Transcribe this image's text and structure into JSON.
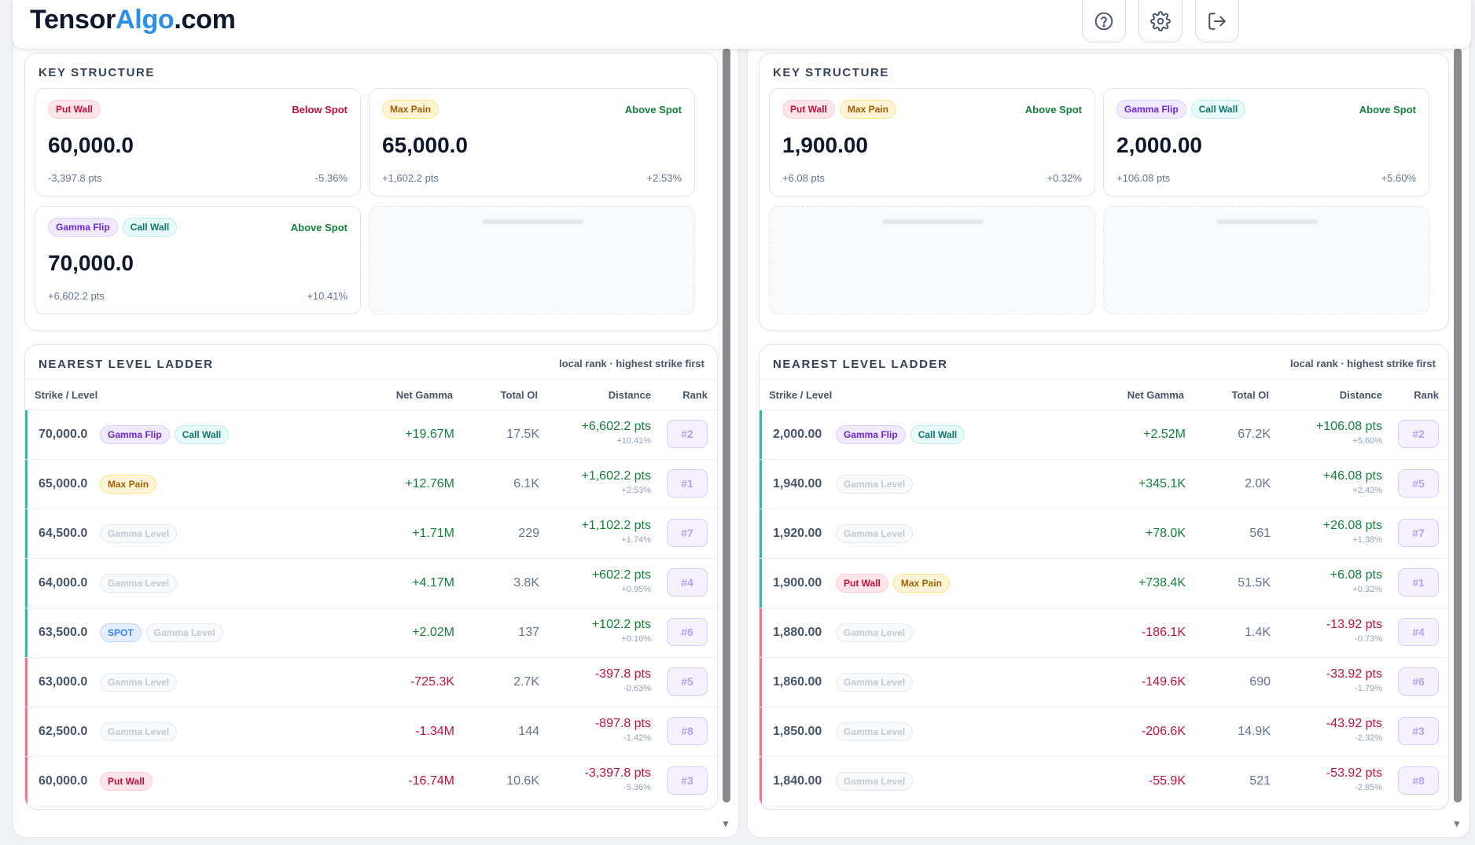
{
  "app": {
    "logo_part1": "Tensor",
    "logo_part2": "Algo",
    "logo_part3": ".com",
    "accent_color": "#2b8fe6",
    "header_icons": [
      "help-icon",
      "settings-gear-icon",
      "logout-icon"
    ]
  },
  "panels": [
    {
      "key_structure": {
        "title": "KEY STRUCTURE",
        "cards": [
          {
            "tags": [
              {
                "label": "Put Wall",
                "kind": "put_wall"
              }
            ],
            "relation": "Below Spot",
            "relation_kind": "below",
            "value": "60,000.0",
            "pts": "-3,397.8 pts",
            "pct": "-5.36%"
          },
          {
            "tags": [
              {
                "label": "Max Pain",
                "kind": "max_pain"
              }
            ],
            "relation": "Above Spot",
            "relation_kind": "above",
            "value": "65,000.0",
            "pts": "+1,602.2 pts",
            "pct": "+2.53%"
          },
          {
            "tags": [
              {
                "label": "Gamma Flip",
                "kind": "gamma_flip"
              },
              {
                "label": "Call Wall",
                "kind": "call_wall"
              }
            ],
            "relation": "Above Spot",
            "relation_kind": "above",
            "value": "70,000.0",
            "pts": "+6,602.2 pts",
            "pct": "+10.41%"
          },
          null
        ]
      },
      "ladder": {
        "title": "NEAREST LEVEL LADDER",
        "note": "local rank · highest strike first",
        "columns": [
          "Strike / Level",
          "Net Gamma",
          "Total OI",
          "Distance",
          "Rank"
        ],
        "rows": [
          {
            "strike": "70,000.0",
            "tags": [
              {
                "label": "Gamma Flip",
                "kind": "gamma_flip"
              },
              {
                "label": "Call Wall",
                "kind": "call_wall"
              }
            ],
            "net_gamma": "+19.67M",
            "total_oi": "17.5K",
            "distance": "+6,602.2 pts",
            "distance_pct": "+10.41%",
            "rank": "#2",
            "side": "pos"
          },
          {
            "strike": "65,000.0",
            "tags": [
              {
                "label": "Max Pain",
                "kind": "max_pain"
              }
            ],
            "net_gamma": "+12.76M",
            "total_oi": "6.1K",
            "distance": "+1,602.2 pts",
            "distance_pct": "+2.53%",
            "rank": "#1",
            "side": "pos"
          },
          {
            "strike": "64,500.0",
            "tags": [
              {
                "label": "Gamma Level",
                "kind": "gamma_level"
              }
            ],
            "net_gamma": "+1.71M",
            "total_oi": "229",
            "distance": "+1,102.2 pts",
            "distance_pct": "+1.74%",
            "rank": "#7",
            "side": "pos"
          },
          {
            "strike": "64,000.0",
            "tags": [
              {
                "label": "Gamma Level",
                "kind": "gamma_level"
              }
            ],
            "net_gamma": "+4.17M",
            "total_oi": "3.8K",
            "distance": "+602.2 pts",
            "distance_pct": "+0.95%",
            "rank": "#4",
            "side": "pos"
          },
          {
            "strike": "63,500.0",
            "tags": [
              {
                "label": "SPOT",
                "kind": "spot"
              },
              {
                "label": "Gamma Level",
                "kind": "gamma_level"
              }
            ],
            "net_gamma": "+2.02M",
            "total_oi": "137",
            "distance": "+102.2 pts",
            "distance_pct": "+0.16%",
            "rank": "#6",
            "side": "pos"
          },
          {
            "strike": "63,000.0",
            "tags": [
              {
                "label": "Gamma Level",
                "kind": "gamma_level"
              }
            ],
            "net_gamma": "-725.3K",
            "total_oi": "2.7K",
            "distance": "-397.8 pts",
            "distance_pct": "-0.63%",
            "rank": "#5",
            "side": "neg"
          },
          {
            "strike": "62,500.0",
            "tags": [
              {
                "label": "Gamma Level",
                "kind": "gamma_level"
              }
            ],
            "net_gamma": "-1.34M",
            "total_oi": "144",
            "distance": "-897.8 pts",
            "distance_pct": "-1.42%",
            "rank": "#8",
            "side": "neg"
          },
          {
            "strike": "60,000.0",
            "tags": [
              {
                "label": "Put Wall",
                "kind": "put_wall"
              }
            ],
            "net_gamma": "-16.74M",
            "total_oi": "10.6K",
            "distance": "-3,397.8 pts",
            "distance_pct": "-5.36%",
            "rank": "#3",
            "side": "neg"
          }
        ]
      }
    },
    {
      "key_structure": {
        "title": "KEY STRUCTURE",
        "cards": [
          {
            "tags": [
              {
                "label": "Put Wall",
                "kind": "put_wall"
              },
              {
                "label": "Max Pain",
                "kind": "max_pain"
              }
            ],
            "relation": "Above Spot",
            "relation_kind": "above",
            "value": "1,900.00",
            "pts": "+6.08 pts",
            "pct": "+0.32%"
          },
          {
            "tags": [
              {
                "label": "Gamma Flip",
                "kind": "gamma_flip"
              },
              {
                "label": "Call Wall",
                "kind": "call_wall"
              }
            ],
            "relation": "Above Spot",
            "relation_kind": "above",
            "value": "2,000.00",
            "pts": "+106.08 pts",
            "pct": "+5.60%"
          },
          null,
          null
        ]
      },
      "ladder": {
        "title": "NEAREST LEVEL LADDER",
        "note": "local rank · highest strike first",
        "columns": [
          "Strike / Level",
          "Net Gamma",
          "Total OI",
          "Distance",
          "Rank"
        ],
        "rows": [
          {
            "strike": "2,000.00",
            "tags": [
              {
                "label": "Gamma Flip",
                "kind": "gamma_flip"
              },
              {
                "label": "Call Wall",
                "kind": "call_wall"
              }
            ],
            "net_gamma": "+2.52M",
            "total_oi": "67.2K",
            "distance": "+106.08 pts",
            "distance_pct": "+5.60%",
            "rank": "#2",
            "side": "pos"
          },
          {
            "strike": "1,940.00",
            "tags": [
              {
                "label": "Gamma Level",
                "kind": "gamma_level"
              }
            ],
            "net_gamma": "+345.1K",
            "total_oi": "2.0K",
            "distance": "+46.08 pts",
            "distance_pct": "+2.43%",
            "rank": "#5",
            "side": "pos"
          },
          {
            "strike": "1,920.00",
            "tags": [
              {
                "label": "Gamma Level",
                "kind": "gamma_level"
              }
            ],
            "net_gamma": "+78.0K",
            "total_oi": "561",
            "distance": "+26.08 pts",
            "distance_pct": "+1.38%",
            "rank": "#7",
            "side": "pos"
          },
          {
            "strike": "1,900.00",
            "tags": [
              {
                "label": "Put Wall",
                "kind": "put_wall"
              },
              {
                "label": "Max Pain",
                "kind": "max_pain"
              }
            ],
            "net_gamma": "+738.4K",
            "total_oi": "51.5K",
            "distance": "+6.08 pts",
            "distance_pct": "+0.32%",
            "rank": "#1",
            "side": "pos"
          },
          {
            "strike": "1,880.00",
            "tags": [
              {
                "label": "Gamma Level",
                "kind": "gamma_level"
              }
            ],
            "net_gamma": "-186.1K",
            "total_oi": "1.4K",
            "distance": "-13.92 pts",
            "distance_pct": "-0.73%",
            "rank": "#4",
            "side": "neg"
          },
          {
            "strike": "1,860.00",
            "tags": [
              {
                "label": "Gamma Level",
                "kind": "gamma_level"
              }
            ],
            "net_gamma": "-149.6K",
            "total_oi": "690",
            "distance": "-33.92 pts",
            "distance_pct": "-1.79%",
            "rank": "#6",
            "side": "neg"
          },
          {
            "strike": "1,850.00",
            "tags": [
              {
                "label": "Gamma Level",
                "kind": "gamma_level"
              }
            ],
            "net_gamma": "-206.6K",
            "total_oi": "14.9K",
            "distance": "-43.92 pts",
            "distance_pct": "-2.32%",
            "rank": "#3",
            "side": "neg"
          },
          {
            "strike": "1,840.00",
            "tags": [
              {
                "label": "Gamma Level",
                "kind": "gamma_level"
              }
            ],
            "net_gamma": "-55.9K",
            "total_oi": "521",
            "distance": "-53.92 pts",
            "distance_pct": "-2.85%",
            "rank": "#8",
            "side": "neg"
          }
        ]
      }
    }
  ]
}
